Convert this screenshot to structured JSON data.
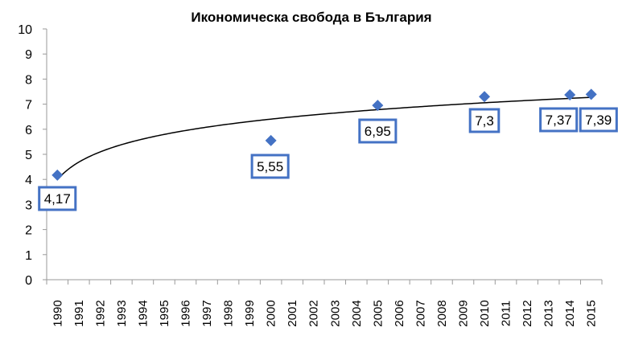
{
  "chart_data": {
    "type": "scatter",
    "title": "Икономическа свобода в България",
    "xlabel": "",
    "ylabel": "",
    "ylim": [
      0,
      10
    ],
    "yticks": [
      "0",
      "1",
      "2",
      "3",
      "4",
      "5",
      "6",
      "7",
      "8",
      "9",
      "10"
    ],
    "categories": [
      "1990",
      "1991",
      "1992",
      "1993",
      "1994",
      "1995",
      "1996",
      "1997",
      "1998",
      "1999",
      "2000",
      "2001",
      "2002",
      "2003",
      "2004",
      "2005",
      "2006",
      "2007",
      "2008",
      "2009",
      "2010",
      "2011",
      "2012",
      "2013",
      "2014",
      "2015"
    ],
    "series": [
      {
        "points": [
          {
            "x": "1990",
            "y": 4.17,
            "label": "4,17"
          },
          {
            "x": "2000",
            "y": 5.55,
            "label": "5,55"
          },
          {
            "x": "2005",
            "y": 6.95,
            "label": "6,95"
          },
          {
            "x": "2010",
            "y": 7.3,
            "label": "7,3"
          },
          {
            "x": "2014",
            "y": 7.37,
            "label": "7,37"
          },
          {
            "x": "2015",
            "y": 7.39,
            "label": "7,39"
          }
        ]
      }
    ],
    "trendline": "logarithmic",
    "grid": false,
    "legend": "none",
    "colors": {
      "marker": "#4472c4",
      "label_border": "#4472c4",
      "trendline": "#000000",
      "axis": "#9a9a9a"
    }
  }
}
